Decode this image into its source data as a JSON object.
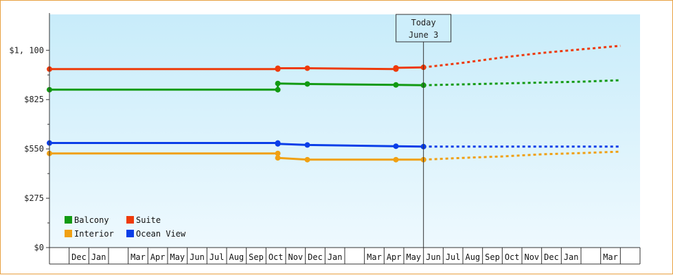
{
  "chart_data": {
    "type": "line",
    "title": "",
    "xlabel": "",
    "ylabel": "",
    "ylim": [
      0,
      1300
    ],
    "yticks": [
      {
        "value": 0,
        "label": "$0"
      },
      {
        "value": 275,
        "label": "$275"
      },
      {
        "value": 550,
        "label": "$550"
      },
      {
        "value": 825,
        "label": "$825"
      },
      {
        "value": 1100,
        "label": "$1, 100"
      }
    ],
    "x_months": [
      "",
      "Dec",
      "Jan",
      "",
      "Mar",
      "Apr",
      "May",
      "Jun",
      "Jul",
      "Aug",
      "Sep",
      "Oct",
      "Nov",
      "Dec",
      "Jan",
      "",
      "Mar",
      "Apr",
      "May",
      "Jun",
      "Jul",
      "Aug",
      "Sep",
      "Oct",
      "Nov",
      "Dec",
      "Jan",
      "",
      "Mar",
      ""
    ],
    "today": {
      "line1": "Today",
      "line2": "June 3",
      "x": 19.0
    },
    "grid": false,
    "legend_position": "bottom-left",
    "series": [
      {
        "name": "Balcony",
        "color": "#129a12",
        "points": [
          [
            0.0,
            880
          ],
          [
            11.6,
            880
          ],
          [
            11.6,
            915
          ],
          [
            13.1,
            912
          ],
          [
            17.6,
            907
          ],
          [
            19.0,
            905
          ]
        ],
        "forecast": [
          [
            19.0,
            905
          ],
          [
            21.0,
            910
          ],
          [
            23.0,
            915
          ],
          [
            25.0,
            920
          ],
          [
            27.0,
            925
          ],
          [
            29.0,
            933
          ]
        ]
      },
      {
        "name": "Suite",
        "color": "#ee3a0a",
        "points": [
          [
            0.0,
            995
          ],
          [
            11.6,
            995
          ],
          [
            11.6,
            1000
          ],
          [
            13.1,
            1000
          ],
          [
            17.6,
            995
          ],
          [
            17.6,
            1002
          ],
          [
            19.0,
            1005
          ]
        ],
        "forecast": [
          [
            19.0,
            1005
          ],
          [
            21.0,
            1030
          ],
          [
            23.0,
            1060
          ],
          [
            25.0,
            1085
          ],
          [
            27.0,
            1105
          ],
          [
            29.0,
            1125
          ]
        ]
      },
      {
        "name": "Interior",
        "color": "#f0a012",
        "points": [
          [
            0.0,
            525
          ],
          [
            11.6,
            525
          ],
          [
            11.6,
            500
          ],
          [
            13.1,
            490
          ],
          [
            17.6,
            490
          ],
          [
            19.0,
            490
          ]
        ],
        "forecast": [
          [
            19.0,
            490
          ],
          [
            21.0,
            500
          ],
          [
            23.0,
            508
          ],
          [
            25.0,
            520
          ],
          [
            27.0,
            527
          ],
          [
            29.0,
            535
          ]
        ]
      },
      {
        "name": "Ocean View",
        "color": "#0a3ee8",
        "points": [
          [
            0.0,
            583
          ],
          [
            11.6,
            583
          ],
          [
            11.6,
            578
          ],
          [
            13.1,
            572
          ],
          [
            17.6,
            565
          ],
          [
            19.0,
            563
          ]
        ],
        "forecast": [
          [
            19.0,
            563
          ],
          [
            21.0,
            563
          ],
          [
            23.0,
            563
          ],
          [
            25.0,
            563
          ],
          [
            27.0,
            563
          ],
          [
            29.0,
            563
          ]
        ]
      }
    ]
  }
}
